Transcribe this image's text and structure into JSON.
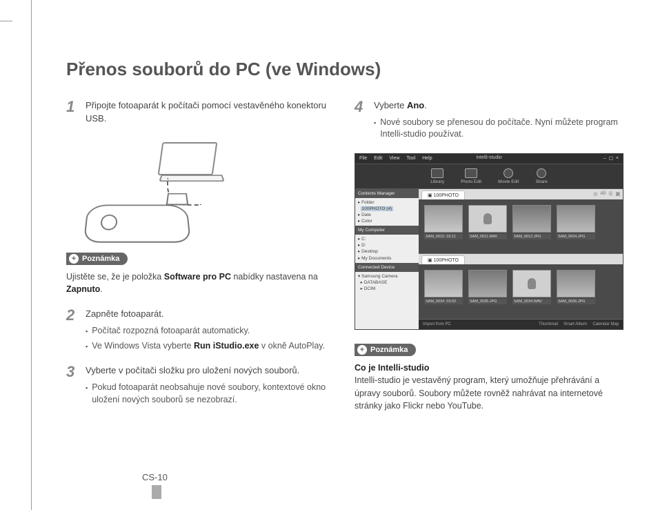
{
  "page": {
    "title": "Přenos souborů do PC (ve Windows)",
    "number": "CS-10"
  },
  "left": {
    "step1": {
      "num": "1",
      "text_a": "Připojte fotoaparát k počítači pomocí vestavěného konektoru USB."
    },
    "note1_label": "Poznámka",
    "note1_a": "Ujistěte se, že je položka ",
    "note1_b": "Software pro PC",
    "note1_c": " nabídky nastavena na ",
    "note1_d": "Zapnuto",
    "note1_e": ".",
    "step2": {
      "num": "2",
      "text": "Zapněte fotoaparát.",
      "b1": "Počítač rozpozná fotoaparát automaticky.",
      "b2_a": "Ve Windows Vista vyberte ",
      "b2_b": "Run iStudio.exe",
      "b2_c": " v okně AutoPlay."
    },
    "step3": {
      "num": "3",
      "text": "Vyberte v počítači složku pro uložení nových souborů.",
      "b1": "Pokud fotoaparát neobsahuje nové soubory, kontextové okno uložení nových souborů se nezobrazí."
    }
  },
  "right": {
    "step4": {
      "num": "4",
      "text_a": "Vyberte ",
      "text_b": "Ano",
      "text_c": ".",
      "b1": "Nové soubory se přenesou do počítače. Nyní můžete program Intelli-studio používat."
    },
    "note2_label": "Poznámka",
    "note2_title": "Co je Intelli-studio",
    "note2_body": "Intelli-studio je vestavěný program, který umožňuje přehrávání a úpravy souborů. Soubory můžete rovněž nahrávat na internetové stránky jako Flickr nebo YouTube."
  },
  "screenshot": {
    "app_title": "Intelli-studio",
    "menu": [
      "File",
      "Edit",
      "View",
      "Tool",
      "Help"
    ],
    "tools": [
      "Library",
      "Photo Edit",
      "Movie Edit",
      "Share"
    ],
    "side_sec1": "Contents Manager",
    "tree1": [
      "Folder",
      "100PHOTO",
      "Date",
      "Color"
    ],
    "tree1_sel": "100PHOTO",
    "tree1_count": "(4)",
    "side_sec2": "My Computer",
    "tree2": [
      "C:",
      "D:",
      "Desktop",
      "My Documents"
    ],
    "side_sec3": "Connected Device",
    "tree3": [
      "Samsung Camera",
      "DATABASE",
      "DCIM"
    ],
    "tab": "100PHOTO",
    "topright": [
      "◎",
      "All",
      "☰",
      "▦"
    ],
    "thumbs1": [
      "SAM_0010.   03:11",
      "SAM_0011.WAV",
      "SAM_0012.JPG",
      "SAM_0024.JPG"
    ],
    "thumbs2": [
      "SAM_0034.   03:02",
      "SAM_0035.JPG",
      "SAM_0034.WAV",
      "SAM_0036.JPG"
    ],
    "footer": [
      "Import from PC",
      "Thumbnail",
      "Smart Album",
      "Calendar Map"
    ]
  },
  "colors": {
    "heading": "#555555",
    "step_num": "#888888",
    "badge_bg": "#666666",
    "text": "#444444"
  }
}
